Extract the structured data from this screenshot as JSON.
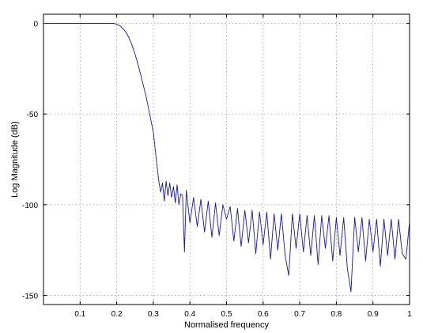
{
  "chart_data": {
    "type": "line",
    "title": "",
    "xlabel": "Normalised frequency",
    "ylabel": "Log Magnitude (dB)",
    "xlim": [
      0,
      1
    ],
    "ylim": [
      -155,
      5
    ],
    "xticks": [
      0.1,
      0.2,
      0.3,
      0.4,
      0.5,
      0.6,
      0.7,
      0.8,
      0.9,
      1
    ],
    "xtick_labels": [
      "0.1",
      "0.2",
      "0.3",
      "0.4",
      "0.5",
      "0.6",
      "0.7",
      "0.8",
      "0.9",
      "1"
    ],
    "yticks": [
      0,
      -50,
      -100,
      -150
    ],
    "ytick_labels": [
      "0",
      "-50",
      "-100",
      "-150"
    ],
    "grid": true,
    "legend": "none",
    "line_color": "#1a1a8c",
    "series": [
      {
        "x": [
          0,
          0.19,
          0.2,
          0.21,
          0.22,
          0.23,
          0.24,
          0.25,
          0.26,
          0.27,
          0.28,
          0.29,
          0.3,
          0.31,
          0.315,
          0.32,
          0.325,
          0.33,
          0.335,
          0.34,
          0.345,
          0.35,
          0.355,
          0.36,
          0.365,
          0.37,
          0.375,
          0.38,
          0.385,
          0.39,
          0.4,
          0.41,
          0.42,
          0.43,
          0.44,
          0.45,
          0.46,
          0.47,
          0.48,
          0.49,
          0.5,
          0.51,
          0.52,
          0.53,
          0.54,
          0.55,
          0.56,
          0.57,
          0.58,
          0.59,
          0.6,
          0.61,
          0.62,
          0.63,
          0.64,
          0.65,
          0.66,
          0.67,
          0.68,
          0.69,
          0.7,
          0.71,
          0.72,
          0.73,
          0.74,
          0.75,
          0.76,
          0.77,
          0.78,
          0.79,
          0.8,
          0.81,
          0.82,
          0.83,
          0.84,
          0.85,
          0.86,
          0.87,
          0.88,
          0.89,
          0.9,
          0.91,
          0.92,
          0.93,
          0.94,
          0.95,
          0.96,
          0.97,
          0.98,
          0.99,
          1
        ],
        "y": [
          0,
          0,
          -0.5,
          -1.5,
          -3.5,
          -6.5,
          -11,
          -17,
          -24,
          -32,
          -40,
          -50,
          -60,
          -78,
          -87,
          -93,
          -88,
          -98,
          -87,
          -95,
          -88,
          -96,
          -90,
          -99,
          -89,
          -100,
          -94,
          -95,
          -126,
          -92,
          -110,
          -96,
          -112,
          -97,
          -115,
          -98,
          -118,
          -99,
          -117,
          -100,
          -108,
          -101,
          -120,
          -102,
          -123,
          -103,
          -121,
          -103,
          -127,
          -104,
          -122,
          -104,
          -130,
          -105,
          -125,
          -105,
          -128,
          -139,
          -105,
          -124,
          -105,
          -126,
          -106,
          -128,
          -106,
          -133,
          -106,
          -124,
          -106,
          -131,
          -107,
          -128,
          -107,
          -135,
          -148,
          -107,
          -126,
          -107,
          -131,
          -108,
          -126,
          -108,
          -134,
          -108,
          -128,
          -108,
          -130,
          -108,
          -127,
          -130,
          -109
        ]
      }
    ]
  }
}
